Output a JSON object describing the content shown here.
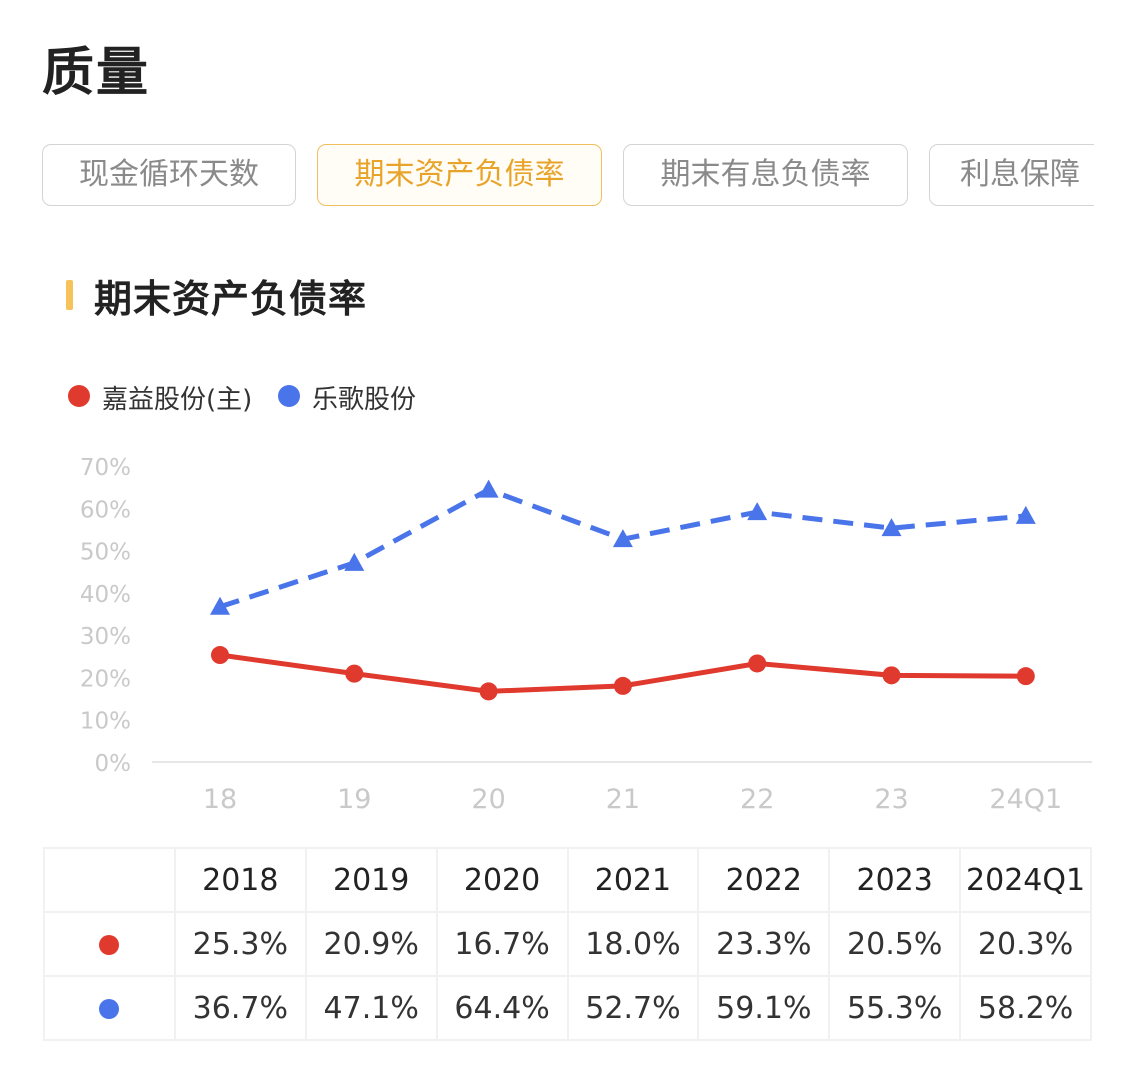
{
  "page": {
    "title": "质量"
  },
  "tabs": [
    {
      "label": "现金循环天数",
      "active": false
    },
    {
      "label": "期末资产负债率",
      "active": true
    },
    {
      "label": "期末有息负债率",
      "active": false
    },
    {
      "label": "利息保障",
      "active": false
    }
  ],
  "colors": {
    "accent": "#e8a42a",
    "accent_bar": "#f5c35a",
    "series_red": "#e03a2e",
    "series_blue": "#4a74ea"
  },
  "section": {
    "title": "期末资产负债率"
  },
  "chart_data": {
    "type": "line",
    "categories": [
      "18",
      "19",
      "20",
      "21",
      "22",
      "23",
      "24Q1"
    ],
    "series": [
      {
        "name": "嘉益股份(主)",
        "values": [
          25.3,
          20.9,
          16.7,
          18.0,
          23.3,
          20.5,
          20.3
        ],
        "color": "#e03a2e",
        "line_style": "solid",
        "marker": "circle"
      },
      {
        "name": "乐歌股份",
        "values": [
          36.7,
          47.1,
          64.4,
          52.7,
          59.1,
          55.3,
          58.2
        ],
        "color": "#4a74ea",
        "line_style": "dashed",
        "marker": "triangle"
      }
    ],
    "ylim": [
      0,
      70
    ],
    "yticks": [
      "0%",
      "10%",
      "20%",
      "30%",
      "40%",
      "50%",
      "60%",
      "70%"
    ],
    "grid": false,
    "legend_position": "top-left"
  },
  "table": {
    "headers": [
      "2018",
      "2019",
      "2020",
      "2021",
      "2022",
      "2023",
      "2024Q1"
    ],
    "rows": [
      {
        "color": "#e03a2e",
        "cells": [
          "25.3%",
          "20.9%",
          "16.7%",
          "18.0%",
          "23.3%",
          "20.5%",
          "20.3%"
        ]
      },
      {
        "color": "#4a74ea",
        "cells": [
          "36.7%",
          "47.1%",
          "64.4%",
          "52.7%",
          "59.1%",
          "55.3%",
          "58.2%"
        ]
      }
    ]
  }
}
